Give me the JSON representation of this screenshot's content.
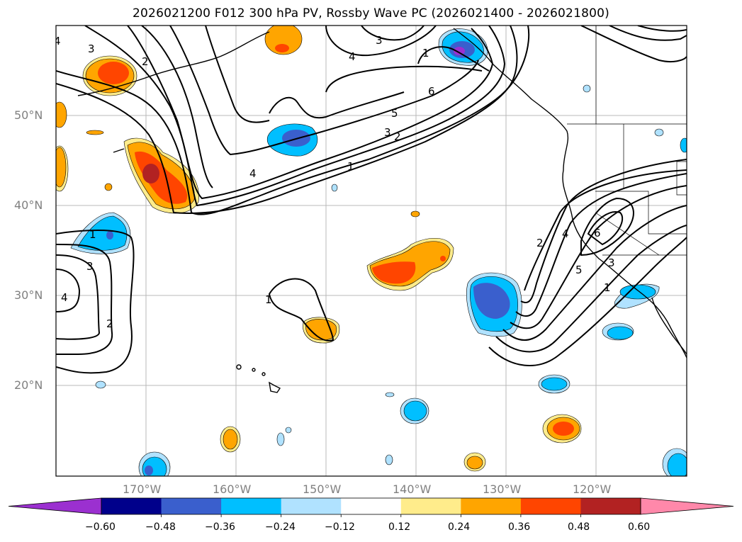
{
  "title": "2026021200 F012 300 hPa PV, Rossby Wave PC (2026021400 - 2026021800)",
  "lat_labels": [
    "50°N",
    "40°N",
    "30°N",
    "20°N"
  ],
  "lon_labels": [
    "170°W",
    "160°W",
    "150°W",
    "140°W",
    "130°W",
    "120°W"
  ],
  "colorbar": {
    "ticks": [
      "−0.60",
      "−0.48",
      "−0.36",
      "−0.24",
      "−0.12",
      "0.12",
      "0.24",
      "0.36",
      "0.48",
      "0.60"
    ],
    "colors": [
      "#9b30d0",
      "#00008b",
      "#3a5fcd",
      "#00bfff",
      "#b0e2ff",
      "#ffffff",
      "#ffec8b",
      "#ffa500",
      "#ff4500",
      "#b22222",
      "#ff88aa"
    ]
  },
  "contour_labels": [
    "3",
    "2",
    "4",
    "3",
    "4",
    "1",
    "6",
    "5",
    "3",
    "2",
    "4",
    "1",
    "1",
    "3",
    "2",
    "4",
    "1",
    "2",
    "4",
    "6",
    "5",
    "3",
    "1"
  ]
}
